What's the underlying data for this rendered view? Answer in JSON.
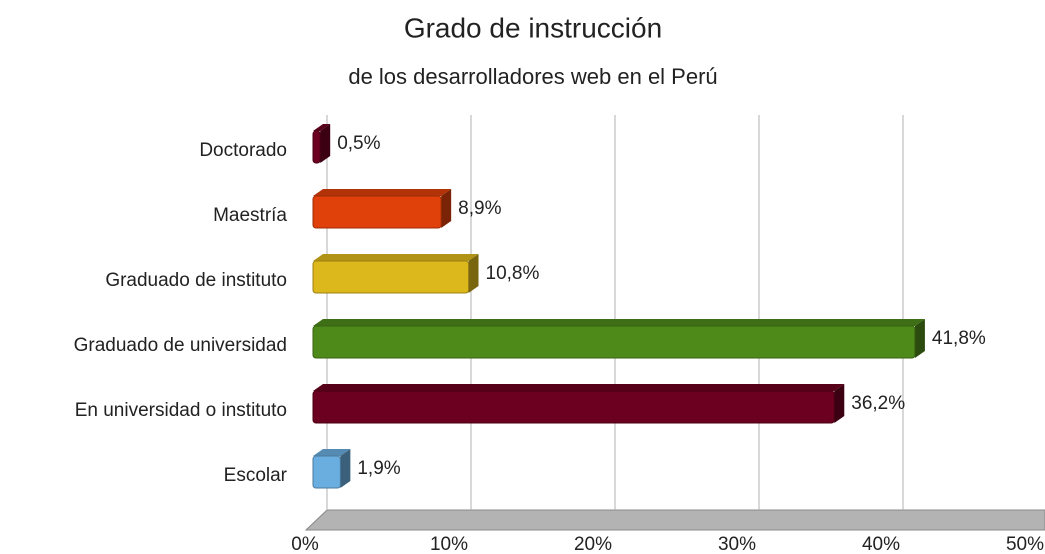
{
  "chart_data": {
    "type": "bar",
    "orientation": "horizontal",
    "title": "Grado de instrucción",
    "subtitle": "de los desarrolladores web en el Perú",
    "categories": [
      "Doctorado",
      "Maestría",
      "Graduado de instituto",
      "Graduado de universidad",
      "En universidad o instituto",
      "Escolar"
    ],
    "values": [
      0.5,
      8.9,
      10.8,
      41.8,
      36.2,
      1.9
    ],
    "value_labels": [
      "0,5%",
      "8,9%",
      "10,8%",
      "41,8%",
      "36,2%",
      "1,9%"
    ],
    "colors": [
      "#6b0020",
      "#e0400a",
      "#ddb81c",
      "#4e8a1a",
      "#6b0020",
      "#6aaee0"
    ],
    "xlim": [
      0,
      50
    ],
    "xticks": [
      {
        "value": 0,
        "label": "0%"
      },
      {
        "value": 10,
        "label": "10%"
      },
      {
        "value": 20,
        "label": "20%"
      },
      {
        "value": 30,
        "label": "30%"
      },
      {
        "value": 40,
        "label": "40%"
      },
      {
        "value": 50,
        "label": "50%"
      }
    ],
    "grid": true
  }
}
